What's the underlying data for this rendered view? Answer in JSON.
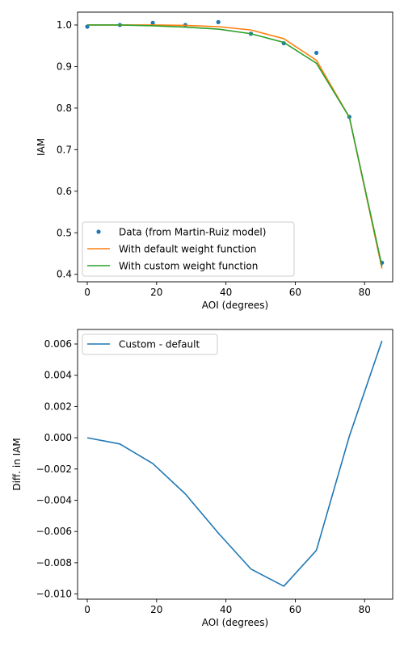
{
  "chart_data": [
    {
      "type": "line",
      "xlabel": "AOI (degrees)",
      "ylabel": "IAM",
      "xlim": [
        -2.8,
        88.1
      ],
      "ylim": [
        0.382,
        1.031
      ],
      "xticks": [
        0,
        20,
        40,
        60,
        80
      ],
      "yticks": [
        0.4,
        0.5,
        0.6,
        0.7,
        0.8,
        0.9,
        1.0
      ],
      "xtick_labels": [
        "0",
        "20",
        "40",
        "60",
        "80"
      ],
      "ytick_labels": [
        "0.4",
        "0.5",
        "0.6",
        "0.7",
        "0.8",
        "0.9",
        "1.0"
      ],
      "legend_position": "lower-left",
      "series": [
        {
          "name": "Data (from Martin-Ruiz model)",
          "style": "points",
          "color": "#1f77b4",
          "x": [
            0,
            9.4,
            18.9,
            28.3,
            37.8,
            47.2,
            56.7,
            66.1,
            75.6,
            85
          ],
          "y": [
            0.996,
            1.0,
            1.005,
            1.0,
            1.007,
            0.979,
            0.956,
            0.933,
            0.779,
            0.428
          ]
        },
        {
          "name": "With default weight function",
          "style": "line",
          "color": "#ff7f0e",
          "x": [
            0,
            9.4,
            18.9,
            28.3,
            37.8,
            47.2,
            56.7,
            66.1,
            75.6,
            85
          ],
          "y": [
            1.0,
            1.0,
            1.0,
            0.999,
            0.996,
            0.988,
            0.967,
            0.915,
            0.778,
            0.414
          ]
        },
        {
          "name": "With custom weight function",
          "style": "line",
          "color": "#2ca02c",
          "x": [
            0,
            9.4,
            18.9,
            28.3,
            37.8,
            47.2,
            56.7,
            66.1,
            75.6,
            85
          ],
          "y": [
            1.0,
            1.0,
            0.998,
            0.995,
            0.99,
            0.979,
            0.958,
            0.908,
            0.778,
            0.42
          ]
        }
      ]
    },
    {
      "type": "line",
      "xlabel": "AOI (degrees)",
      "ylabel": "Diff. in IAM",
      "xlim": [
        -2.8,
        88.1
      ],
      "ylim": [
        -0.01033,
        0.00693
      ],
      "xticks": [
        0,
        20,
        40,
        60,
        80
      ],
      "yticks": [
        -0.01,
        -0.008,
        -0.006,
        -0.004,
        -0.002,
        0.0,
        0.002,
        0.004,
        0.006
      ],
      "xtick_labels": [
        "0",
        "20",
        "40",
        "60",
        "80"
      ],
      "ytick_labels": [
        "−0.010",
        "−0.008",
        "−0.006",
        "−0.004",
        "−0.002",
        "0.000",
        "0.002",
        "0.004",
        "0.006"
      ],
      "legend_position": "upper-left",
      "series": [
        {
          "name": "Custom - default",
          "style": "line",
          "color": "#1f77b4",
          "x": [
            0,
            9.4,
            18.9,
            28.3,
            37.8,
            47.2,
            56.7,
            66.1,
            75.6,
            85
          ],
          "y": [
            0.0,
            -0.0004,
            -0.00165,
            -0.0036,
            -0.0061,
            -0.0084,
            -0.0095,
            -0.0072,
            0.0001,
            0.0062
          ]
        }
      ]
    }
  ]
}
